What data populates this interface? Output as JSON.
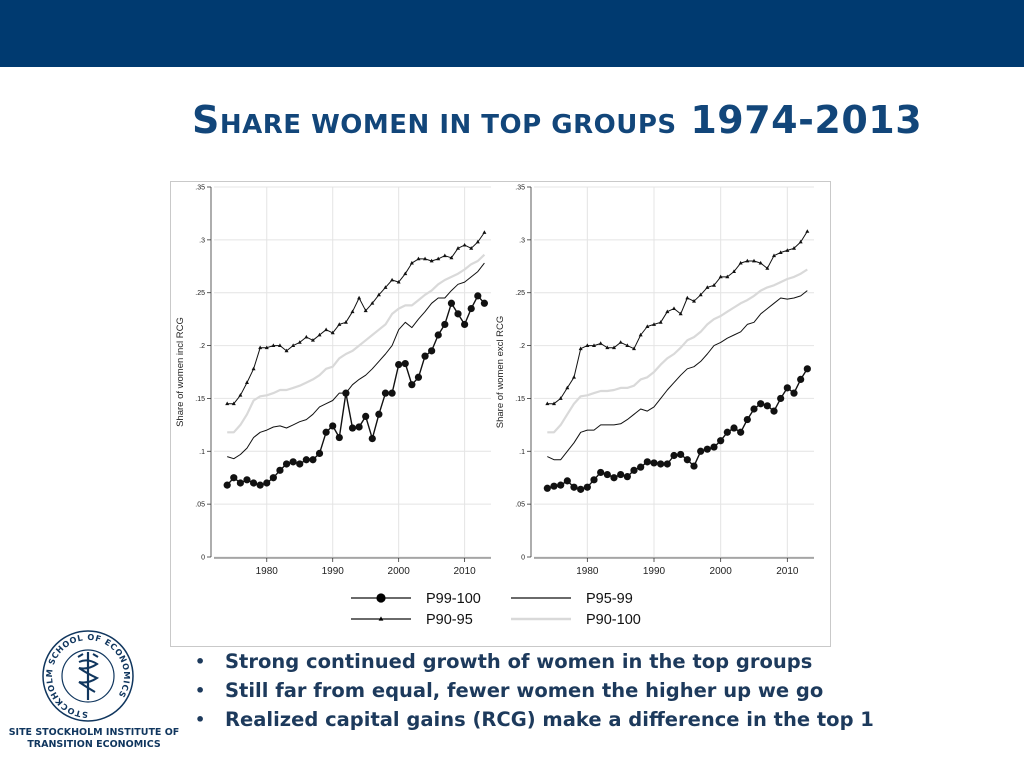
{
  "slide": {
    "title_initial": "S",
    "title_rest": "HARE WOMEN IN TOP GROUPS",
    "title_years": "1974-2013"
  },
  "bullets": [
    "Strong continued growth of women in the top groups",
    "Still far from equal, fewer women the higher up we go",
    "Realized capital gains (RCG) make a difference in the top 1"
  ],
  "logo": {
    "ring_text": "STOCKHOLM SCHOOL OF ECONOMICS",
    "caption_line1": "SITE STOCKHOLM INSTITUTE OF",
    "caption_line2": "TRANSITION ECONOMICS"
  },
  "colors": {
    "band": "#003a70",
    "title": "#12467a",
    "p99_100": "#000000",
    "p95_99": "#1a1a1a",
    "p90_95": "#000000",
    "p90_100": "#d9d9d9"
  },
  "chart_data": [
    {
      "type": "line",
      "ylabel": "Share of women incl RCG",
      "xlabel": "",
      "xlim": [
        1972,
        2014
      ],
      "ylim": [
        0,
        0.35
      ],
      "xticks": [
        "1980",
        "1990",
        "2000",
        "2010"
      ],
      "yticks": [
        "0",
        ".05",
        ".1",
        ".15",
        ".2",
        ".25",
        ".3",
        ".35"
      ],
      "grid": true,
      "x": [
        1974,
        1975,
        1976,
        1977,
        1978,
        1979,
        1980,
        1981,
        1982,
        1983,
        1984,
        1985,
        1986,
        1987,
        1988,
        1989,
        1990,
        1991,
        1992,
        1993,
        1994,
        1995,
        1996,
        1997,
        1998,
        1999,
        2000,
        2001,
        2002,
        2003,
        2004,
        2005,
        2006,
        2007,
        2008,
        2009,
        2010,
        2011,
        2012,
        2013
      ],
      "series": [
        {
          "name": "P99-100",
          "style": "dot",
          "values": [
            0.068,
            0.075,
            0.07,
            0.073,
            0.07,
            0.068,
            0.07,
            0.075,
            0.082,
            0.088,
            0.09,
            0.088,
            0.092,
            0.092,
            0.098,
            0.118,
            0.124,
            0.113,
            0.155,
            0.122,
            0.123,
            0.133,
            0.112,
            0.135,
            0.155,
            0.155,
            0.182,
            0.183,
            0.163,
            0.17,
            0.19,
            0.195,
            0.21,
            0.22,
            0.24,
            0.23,
            0.22,
            0.235,
            0.247,
            0.24
          ]
        },
        {
          "name": "P95-99",
          "style": "solid",
          "values": [
            0.095,
            0.093,
            0.097,
            0.103,
            0.113,
            0.118,
            0.12,
            0.123,
            0.124,
            0.122,
            0.125,
            0.128,
            0.13,
            0.135,
            0.142,
            0.145,
            0.148,
            0.155,
            0.155,
            0.163,
            0.168,
            0.172,
            0.178,
            0.185,
            0.192,
            0.2,
            0.215,
            0.222,
            0.217,
            0.225,
            0.232,
            0.24,
            0.245,
            0.245,
            0.252,
            0.258,
            0.26,
            0.265,
            0.27,
            0.278
          ]
        },
        {
          "name": "P90-95",
          "style": "triangle",
          "values": [
            0.145,
            0.145,
            0.153,
            0.165,
            0.178,
            0.198,
            0.198,
            0.2,
            0.2,
            0.195,
            0.2,
            0.203,
            0.208,
            0.205,
            0.21,
            0.215,
            0.212,
            0.22,
            0.222,
            0.232,
            0.245,
            0.233,
            0.24,
            0.248,
            0.255,
            0.262,
            0.26,
            0.268,
            0.278,
            0.282,
            0.282,
            0.28,
            0.282,
            0.285,
            0.283,
            0.292,
            0.295,
            0.292,
            0.298,
            0.307
          ]
        },
        {
          "name": "P90-100",
          "style": "gray",
          "values": [
            0.118,
            0.118,
            0.125,
            0.135,
            0.148,
            0.152,
            0.153,
            0.155,
            0.158,
            0.158,
            0.16,
            0.162,
            0.165,
            0.168,
            0.172,
            0.178,
            0.18,
            0.188,
            0.192,
            0.195,
            0.2,
            0.205,
            0.21,
            0.215,
            0.22,
            0.23,
            0.235,
            0.238,
            0.238,
            0.243,
            0.248,
            0.252,
            0.258,
            0.262,
            0.265,
            0.268,
            0.272,
            0.277,
            0.28,
            0.286
          ]
        }
      ]
    },
    {
      "type": "line",
      "ylabel": "Share of women excl RCG",
      "xlabel": "",
      "xlim": [
        1972,
        2014
      ],
      "ylim": [
        0,
        0.35
      ],
      "xticks": [
        "1980",
        "1990",
        "2000",
        "2010"
      ],
      "yticks": [
        "0",
        ".05",
        ".1",
        ".15",
        ".2",
        ".25",
        ".3",
        ".35"
      ],
      "grid": true,
      "x": [
        1974,
        1975,
        1976,
        1977,
        1978,
        1979,
        1980,
        1981,
        1982,
        1983,
        1984,
        1985,
        1986,
        1987,
        1988,
        1989,
        1990,
        1991,
        1992,
        1993,
        1994,
        1995,
        1996,
        1997,
        1998,
        1999,
        2000,
        2001,
        2002,
        2003,
        2004,
        2005,
        2006,
        2007,
        2008,
        2009,
        2010,
        2011,
        2012,
        2013
      ],
      "series": [
        {
          "name": "P99-100",
          "style": "dot",
          "values": [
            0.065,
            0.067,
            0.068,
            0.072,
            0.066,
            0.064,
            0.066,
            0.073,
            0.08,
            0.078,
            0.075,
            0.078,
            0.076,
            0.082,
            0.085,
            0.09,
            0.089,
            0.088,
            0.088,
            0.096,
            0.097,
            0.092,
            0.086,
            0.1,
            0.102,
            0.104,
            0.11,
            0.118,
            0.122,
            0.118,
            0.13,
            0.14,
            0.145,
            0.143,
            0.138,
            0.15,
            0.16,
            0.155,
            0.168,
            0.178
          ]
        },
        {
          "name": "P95-99",
          "style": "solid",
          "values": [
            0.095,
            0.092,
            0.092,
            0.1,
            0.108,
            0.118,
            0.12,
            0.12,
            0.125,
            0.125,
            0.125,
            0.126,
            0.13,
            0.135,
            0.14,
            0.138,
            0.142,
            0.15,
            0.158,
            0.165,
            0.172,
            0.178,
            0.18,
            0.185,
            0.192,
            0.2,
            0.203,
            0.207,
            0.21,
            0.213,
            0.22,
            0.222,
            0.23,
            0.235,
            0.24,
            0.245,
            0.244,
            0.245,
            0.247,
            0.252
          ]
        },
        {
          "name": "P90-95",
          "style": "triangle",
          "values": [
            0.145,
            0.145,
            0.15,
            0.16,
            0.17,
            0.197,
            0.2,
            0.2,
            0.202,
            0.198,
            0.198,
            0.203,
            0.2,
            0.197,
            0.21,
            0.218,
            0.22,
            0.222,
            0.232,
            0.235,
            0.23,
            0.245,
            0.242,
            0.248,
            0.255,
            0.257,
            0.265,
            0.265,
            0.27,
            0.278,
            0.28,
            0.28,
            0.278,
            0.273,
            0.285,
            0.288,
            0.29,
            0.292,
            0.298,
            0.308
          ]
        },
        {
          "name": "P90-100",
          "style": "gray",
          "values": [
            0.118,
            0.118,
            0.125,
            0.135,
            0.145,
            0.152,
            0.153,
            0.155,
            0.157,
            0.157,
            0.158,
            0.16,
            0.16,
            0.162,
            0.168,
            0.17,
            0.175,
            0.182,
            0.188,
            0.192,
            0.198,
            0.205,
            0.208,
            0.213,
            0.22,
            0.225,
            0.228,
            0.232,
            0.236,
            0.24,
            0.243,
            0.247,
            0.252,
            0.255,
            0.257,
            0.26,
            0.263,
            0.265,
            0.268,
            0.272
          ]
        }
      ]
    }
  ],
  "legend": [
    "P99-100",
    "P95-99",
    "P90-95",
    "P90-100"
  ]
}
